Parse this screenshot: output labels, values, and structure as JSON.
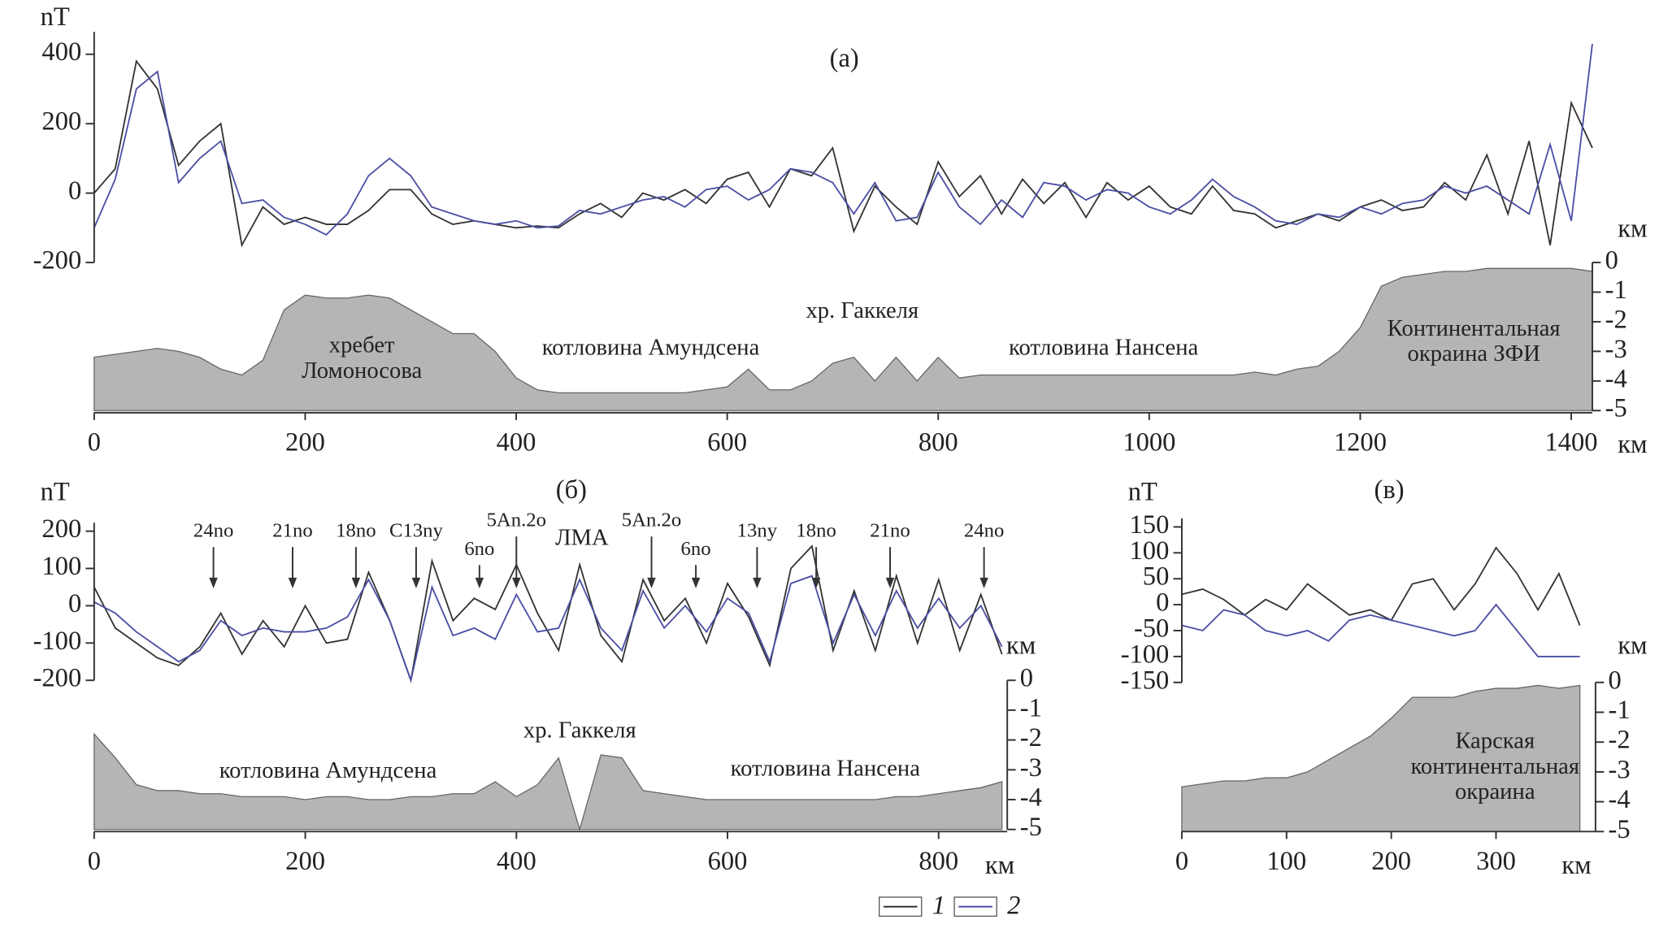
{
  "chart_data": [
    {
      "type": "line",
      "title": "(a)",
      "y_label": "nT",
      "x_label": "км",
      "y2_label": "км",
      "x": [
        0,
        20,
        40,
        60,
        80,
        100,
        120,
        140,
        160,
        180,
        200,
        220,
        240,
        260,
        280,
        300,
        320,
        340,
        360,
        380,
        400,
        420,
        440,
        460,
        480,
        500,
        520,
        540,
        560,
        580,
        600,
        620,
        640,
        660,
        680,
        700,
        720,
        740,
        760,
        780,
        800,
        820,
        840,
        860,
        880,
        900,
        920,
        940,
        960,
        980,
        1000,
        1020,
        1040,
        1060,
        1080,
        1100,
        1120,
        1140,
        1160,
        1180,
        1200,
        1220,
        1240,
        1260,
        1280,
        1300,
        1320,
        1340,
        1360,
        1380,
        1400,
        1420
      ],
      "series": [
        {
          "name": "1",
          "color": "#333333",
          "values": [
            0,
            70,
            380,
            300,
            80,
            150,
            200,
            -150,
            -40,
            -90,
            -70,
            -90,
            -90,
            -50,
            10,
            10,
            -60,
            -90,
            -80,
            -90,
            -100,
            -95,
            -100,
            -60,
            -30,
            -70,
            0,
            -20,
            10,
            -30,
            40,
            60,
            -40,
            70,
            50,
            130,
            -110,
            20,
            -40,
            -90,
            90,
            -10,
            50,
            -60,
            40,
            -30,
            30,
            -70,
            30,
            -20,
            20,
            -40,
            -60,
            20,
            -50,
            -60,
            -100,
            -80,
            -60,
            -80,
            -40,
            -20,
            -50,
            -40,
            30,
            -20,
            110,
            -60,
            150,
            -150,
            260,
            130
          ]
        },
        {
          "name": "2",
          "color": "#4b4ea3",
          "values": [
            -100,
            40,
            300,
            350,
            30,
            100,
            150,
            -30,
            -20,
            -70,
            -90,
            -120,
            -60,
            50,
            100,
            50,
            -40,
            -60,
            -80,
            -90,
            -80,
            -100,
            -95,
            -50,
            -60,
            -40,
            -20,
            -10,
            -40,
            10,
            20,
            -20,
            10,
            70,
            60,
            30,
            -60,
            30,
            -80,
            -70,
            60,
            -40,
            -90,
            -20,
            -70,
            30,
            20,
            -20,
            10,
            0,
            -40,
            -60,
            -20,
            40,
            -10,
            -40,
            -80,
            -90,
            -60,
            -70,
            -40,
            -60,
            -30,
            -20,
            20,
            0,
            20,
            -20,
            -60,
            140,
            -80,
            430
          ]
        },
        {
          "type": "area",
          "axis": "y2",
          "color": "#b4b6b4",
          "values": [
            -3.2,
            -3.1,
            -3.0,
            -2.9,
            -3.0,
            -3.2,
            -3.6,
            -3.8,
            -3.3,
            -1.6,
            -1.1,
            -1.2,
            -1.2,
            -1.1,
            -1.2,
            -1.6,
            -2.0,
            -2.4,
            -2.4,
            -3.0,
            -3.9,
            -4.3,
            -4.4,
            -4.4,
            -4.4,
            -4.4,
            -4.4,
            -4.4,
            -4.4,
            -4.3,
            -4.2,
            -3.6,
            -4.3,
            -4.3,
            -4.0,
            -3.4,
            -3.2,
            -4.0,
            -3.2,
            -4.0,
            -3.2,
            -3.9,
            -3.8,
            -3.8,
            -3.8,
            -3.8,
            -3.8,
            -3.8,
            -3.8,
            -3.8,
            -3.8,
            -3.8,
            -3.8,
            -3.8,
            -3.8,
            -3.7,
            -3.8,
            -3.6,
            -3.5,
            -3.0,
            -2.2,
            -0.8,
            -0.5,
            -0.4,
            -0.3,
            -0.3,
            -0.2,
            -0.2,
            -0.2,
            -0.2,
            -0.2,
            -0.3
          ]
        }
      ],
      "xlim": [
        0,
        1420
      ],
      "xticks": [
        0,
        200,
        400,
        600,
        800,
        1000,
        1200,
        1400
      ],
      "ylim": [
        -200,
        440
      ],
      "yticks": [
        -200,
        0,
        200,
        400
      ],
      "y2lim": [
        -5,
        0
      ],
      "y2ticks": [
        0,
        -1,
        -2,
        -3,
        -4,
        -5
      ],
      "annotations": [
        [
          "хребет",
          "Ломоносова"
        ],
        [
          "котловина Амундсена"
        ],
        [
          "хр. Гаккеля"
        ],
        [
          "котловина Нансена"
        ],
        [
          "Континентальная",
          "окраина ЗФИ"
        ]
      ]
    },
    {
      "type": "line",
      "title": "(б)",
      "y_label": "nT",
      "x_label": "км",
      "y2_label": "км",
      "x": [
        0,
        20,
        40,
        60,
        80,
        100,
        120,
        140,
        160,
        180,
        200,
        220,
        240,
        260,
        280,
        300,
        320,
        340,
        360,
        380,
        400,
        420,
        440,
        460,
        480,
        500,
        520,
        540,
        560,
        580,
        600,
        620,
        640,
        660,
        680,
        700,
        720,
        740,
        760,
        780,
        800,
        820,
        840,
        860
      ],
      "series": [
        {
          "color": "#333333",
          "values": [
            50,
            -60,
            -100,
            -140,
            -160,
            -110,
            -20,
            -130,
            -40,
            -110,
            0,
            -100,
            -90,
            90,
            -40,
            -200,
            120,
            -40,
            20,
            -10,
            110,
            -20,
            -120,
            110,
            -80,
            -150,
            70,
            -40,
            20,
            -100,
            60,
            -30,
            -160,
            100,
            160,
            -120,
            40,
            -120,
            80,
            -100,
            70,
            -120,
            30,
            -130
          ]
        },
        {
          "color": "#4b4ea3",
          "values": [
            10,
            -20,
            -70,
            -110,
            -150,
            -120,
            -40,
            -80,
            -60,
            -70,
            -70,
            -60,
            -30,
            70,
            -40,
            -200,
            50,
            -80,
            -60,
            -90,
            30,
            -70,
            -60,
            70,
            -60,
            -120,
            40,
            -60,
            0,
            -70,
            20,
            -20,
            -150,
            60,
            80,
            -100,
            30,
            -80,
            40,
            -60,
            20,
            -60,
            0,
            -110
          ]
        },
        {
          "type": "area",
          "axis": "y2",
          "color": "#b4b6b4",
          "values": [
            -1.8,
            -2.6,
            -3.5,
            -3.7,
            -3.7,
            -3.8,
            -3.8,
            -3.9,
            -3.9,
            -3.9,
            -4.0,
            -3.9,
            -3.9,
            -4.0,
            -4.0,
            -3.9,
            -3.9,
            -3.8,
            -3.8,
            -3.4,
            -3.9,
            -3.5,
            -2.6,
            -5.0,
            -2.5,
            -2.6,
            -3.7,
            -3.8,
            -3.9,
            -4.0,
            -4.0,
            -4.0,
            -4.0,
            -4.0,
            -4.0,
            -4.0,
            -4.0,
            -4.0,
            -3.9,
            -3.9,
            -3.8,
            -3.7,
            -3.6,
            -3.4
          ]
        }
      ],
      "xlim": [
        0,
        865
      ],
      "xticks": [
        0,
        200,
        400,
        600,
        800
      ],
      "ylim": [
        -200,
        200
      ],
      "yticks": [
        -200,
        -100,
        0,
        100,
        200
      ],
      "y2lim": [
        -5,
        0
      ],
      "y2ticks": [
        0,
        -1,
        -2,
        -3,
        -4,
        -5
      ],
      "markers": [
        {
          "label": "24no",
          "x": 113
        },
        {
          "label": "21no",
          "x": 188
        },
        {
          "label": "18no",
          "x": 248
        },
        {
          "label": "C13ny",
          "x": 305
        },
        {
          "label": "6no",
          "x": 365
        },
        {
          "label": "5An.2o",
          "x": 400
        },
        {
          "label": "5An.2o",
          "x": 528
        },
        {
          "label": "6no",
          "x": 570
        },
        {
          "label": "13ny",
          "x": 628
        },
        {
          "label": "18no",
          "x": 684
        },
        {
          "label": "21no",
          "x": 754
        },
        {
          "label": "24no",
          "x": 843
        }
      ],
      "annotations": [
        [
          "ЛМА"
        ],
        [
          "хр. Гаккеля"
        ],
        [
          "котловина Амундсена"
        ],
        [
          "котловина Нансена"
        ]
      ]
    },
    {
      "type": "line",
      "title": "(в)",
      "y_label": "nT",
      "x_label": "км",
      "y2_label": "км",
      "x": [
        0,
        20,
        40,
        60,
        80,
        100,
        120,
        140,
        160,
        180,
        200,
        220,
        240,
        260,
        280,
        300,
        320,
        340,
        360,
        380
      ],
      "series": [
        {
          "color": "#333333",
          "values": [
            20,
            30,
            10,
            -20,
            10,
            -10,
            40,
            10,
            -20,
            -10,
            -30,
            40,
            50,
            -10,
            40,
            110,
            60,
            -10,
            60,
            -40
          ]
        },
        {
          "color": "#4b4ea3",
          "values": [
            -40,
            -50,
            -10,
            -20,
            -50,
            -60,
            -50,
            -70,
            -30,
            -20,
            -30,
            -40,
            -50,
            -60,
            -50,
            0,
            -50,
            -100,
            -100,
            -100
          ]
        },
        {
          "type": "area",
          "axis": "y2",
          "color": "#b4b6b4",
          "values": [
            -3.5,
            -3.4,
            -3.3,
            -3.3,
            -3.2,
            -3.2,
            -3.0,
            -2.6,
            -2.2,
            -1.8,
            -1.2,
            -0.5,
            -0.5,
            -0.5,
            -0.3,
            -0.2,
            -0.2,
            -0.1,
            -0.2,
            -0.1
          ]
        }
      ],
      "xlim": [
        0,
        395
      ],
      "xticks": [
        0,
        100,
        200,
        300
      ],
      "ylim": [
        -150,
        150
      ],
      "yticks": [
        -150,
        -100,
        -50,
        0,
        50,
        100,
        150
      ],
      "y2lim": [
        -5,
        0
      ],
      "y2ticks": [
        0,
        -1,
        -2,
        -3,
        -4,
        -5
      ],
      "annotations": [
        [
          "Карская",
          "континентальная",
          "окраина"
        ]
      ]
    }
  ]
}
